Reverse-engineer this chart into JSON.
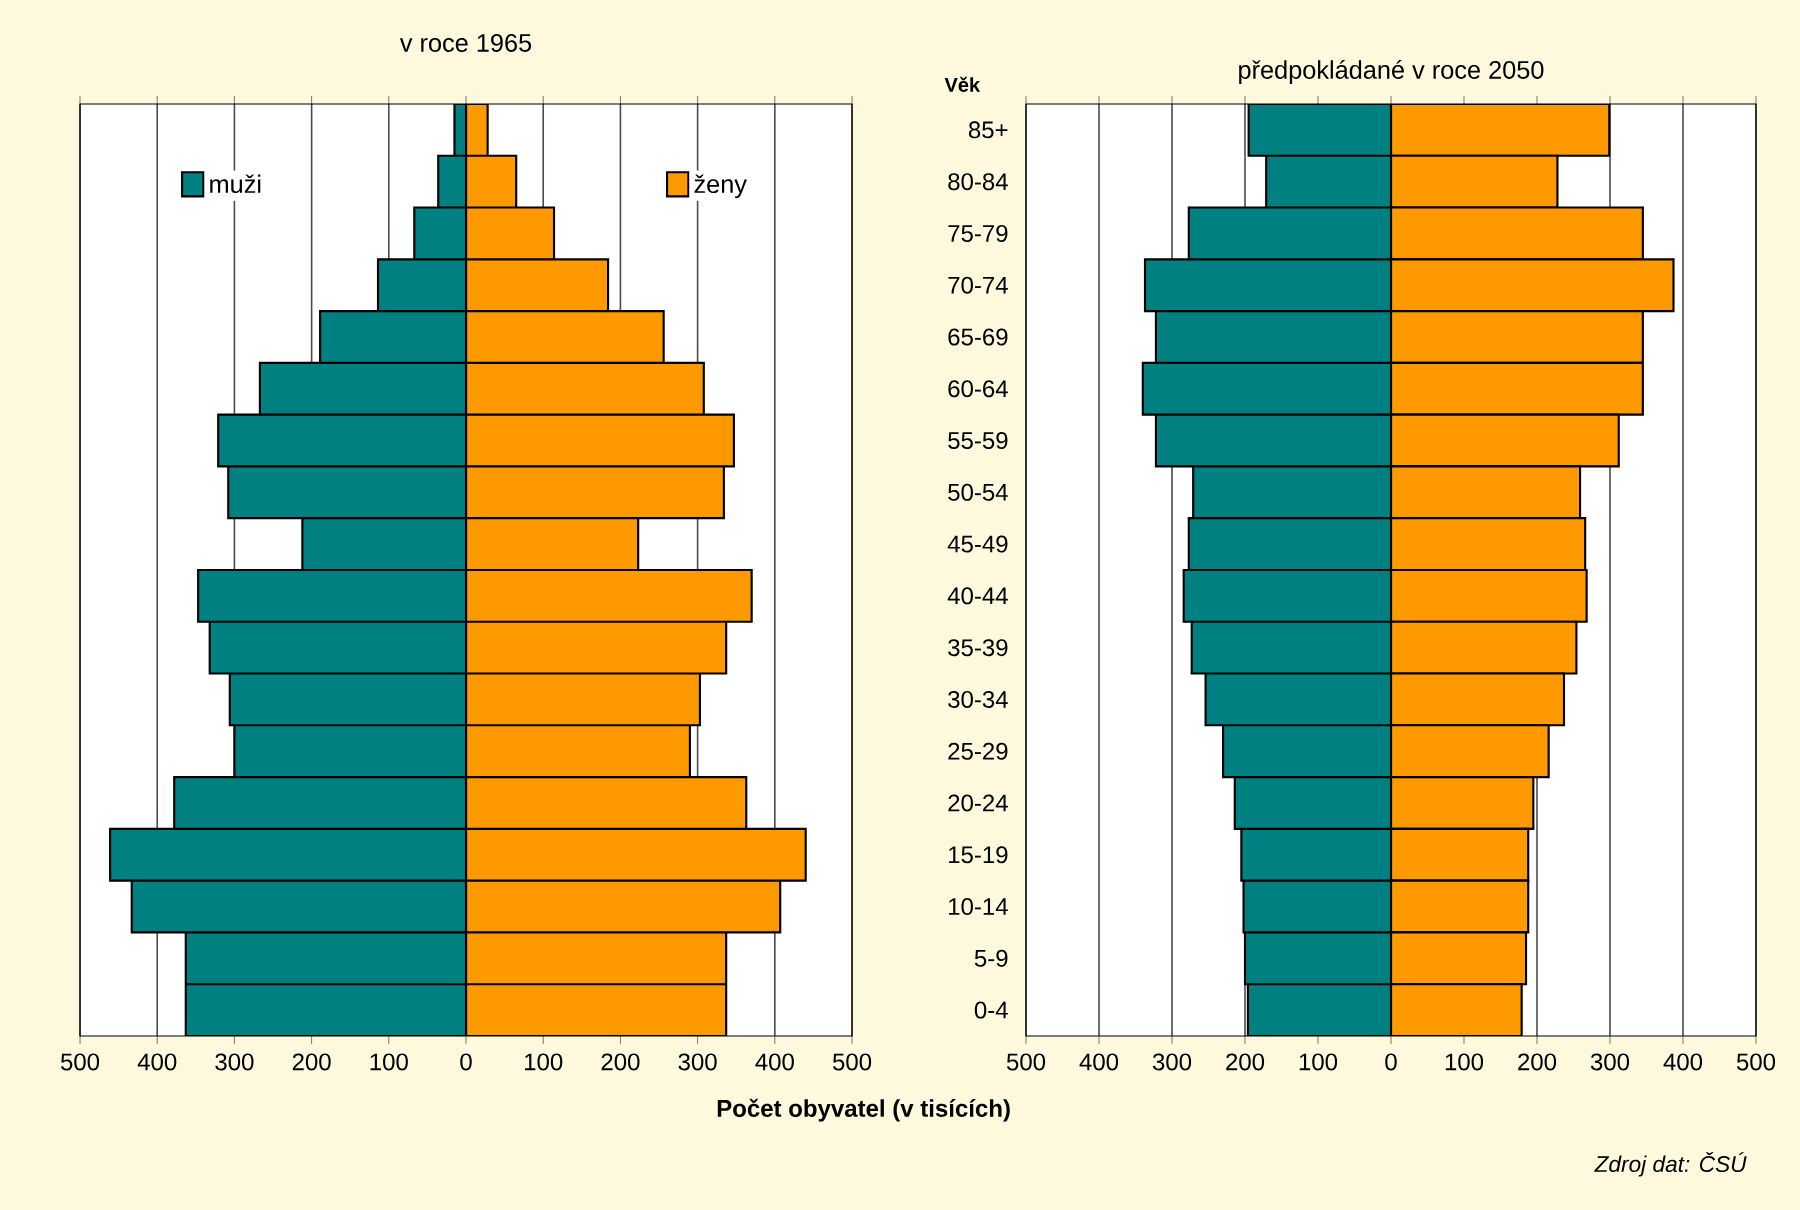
{
  "chart_data": [
    {
      "type": "bar",
      "orientation": "horizontal",
      "title": "v roce 1965",
      "xlabel": "Počet obyvatel (v tisících)",
      "categories": [
        null,
        null,
        null,
        null,
        null,
        null,
        null,
        null,
        null,
        null,
        null,
        null,
        null,
        null,
        null,
        null,
        null,
        null
      ],
      "series": [
        {
          "name": "muži",
          "color": "#008080",
          "values": [
            -15,
            -36,
            -67,
            -114,
            -189,
            -267,
            -321,
            -308,
            -212,
            -347,
            -332,
            -306,
            -300,
            -378,
            -461,
            -433,
            -363,
            -363
          ]
        },
        {
          "name": "ženy",
          "color": "#ff9900",
          "values": [
            28,
            65,
            114,
            184,
            256,
            308,
            347,
            334,
            223,
            370,
            337,
            303,
            290,
            363,
            440,
            407,
            337,
            337
          ]
        }
      ],
      "xlim": [
        -500,
        500
      ],
      "xticks": [
        {
          "value": -500,
          "label": "500"
        },
        {
          "value": -400,
          "label": "400"
        },
        {
          "value": -300,
          "label": "300"
        },
        {
          "value": -200,
          "label": "200"
        },
        {
          "value": -100,
          "label": "100"
        },
        0,
        100,
        200,
        300,
        400,
        500
      ],
      "stacked": true,
      "grid": "x",
      "legend": "top",
      "tick_labels": "x"
    },
    {
      "type": "bar",
      "orientation": "horizontal",
      "title": "předpokládané v roce 2050",
      "ylabel": "Věk",
      "categories": [
        "85+",
        "80-84",
        "75-79",
        "70-74",
        "65-69",
        "60-64",
        "55-59",
        "50-54",
        "45-49",
        "40-44",
        "35-39",
        "30-34",
        "25-29",
        "20-24",
        "15-19",
        "10-14",
        "5-9",
        "0-4"
      ],
      "series": [
        {
          "color": "#008080",
          "values": [
            -195,
            -171,
            -277,
            -337,
            -322,
            -340,
            -322,
            -271,
            -277,
            -284,
            -273,
            -254,
            -230,
            -214,
            -205,
            -202,
            -200,
            -196
          ]
        },
        {
          "color": "#ff9900",
          "values": [
            299,
            228,
            345,
            387,
            345,
            345,
            312,
            259,
            266,
            268,
            254,
            237,
            216,
            195,
            188,
            188,
            185,
            179
          ]
        }
      ],
      "xlim": [
        -500,
        500
      ],
      "xticks": [
        {
          "value": -500,
          "label": "500"
        },
        {
          "value": -400,
          "label": "400"
        },
        {
          "value": -300,
          "label": "300"
        },
        {
          "value": -200,
          "label": "200"
        },
        {
          "value": -100,
          "label": "100"
        },
        0,
        100,
        200,
        300,
        400,
        500
      ],
      "stacked": true,
      "grid": "x",
      "annotations": [
        "Zdroj dat: ČSÚ"
      ]
    }
  ]
}
